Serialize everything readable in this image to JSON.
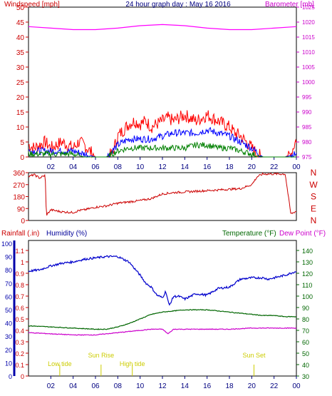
{
  "chart_data": [
    {
      "panel": "wind",
      "type": "line",
      "title": "24 hour graph day : May 16 2016",
      "left_label": "Windspeed [mph]",
      "right_label": "Barometer [mb]",
      "left_ticks": [
        0,
        5,
        10,
        15,
        20,
        25,
        30,
        35,
        40,
        45,
        50
      ],
      "right_ticks": [
        975,
        980,
        985,
        990,
        995,
        1000,
        1005,
        1010,
        1015,
        1020,
        1025
      ],
      "x_ticks": [
        "02",
        "04",
        "06",
        "08",
        "10",
        "12",
        "14",
        "16",
        "18",
        "20",
        "22",
        "00"
      ],
      "ylim": [
        0,
        50
      ],
      "y2lim": [
        975,
        1025
      ],
      "xlim": [
        0,
        24
      ],
      "series": [
        {
          "color": "#ff0000",
          "x": [
            0,
            0.5,
            1,
            1.5,
            2,
            2.5,
            3,
            3.5,
            4,
            4.5,
            5,
            5.5,
            6,
            6.5,
            7,
            7.5,
            8,
            8.5,
            9,
            9.5,
            10,
            10.5,
            11,
            11.5,
            12,
            12.5,
            13,
            13.5,
            14,
            14.5,
            15,
            15.5,
            16,
            16.5,
            17,
            17.5,
            18,
            18.5,
            19,
            19.5,
            20,
            20.5,
            21,
            21.5,
            22,
            22.5,
            23,
            23.5,
            24
          ],
          "values": [
            4,
            3,
            4,
            5,
            3,
            4,
            5,
            4,
            3,
            5,
            4,
            2,
            0,
            0,
            0,
            1,
            7,
            9,
            11,
            12,
            11,
            12,
            10,
            11,
            12,
            13,
            12,
            13,
            14,
            13,
            12,
            13,
            14,
            13,
            12,
            11,
            10,
            8,
            7,
            5,
            3,
            1,
            0,
            0,
            0,
            0,
            0,
            1,
            6
          ]
        },
        {
          "color": "#0000ff",
          "x": [
            0,
            1,
            2,
            3,
            4,
            5,
            6,
            7,
            8,
            9,
            10,
            11,
            12,
            13,
            14,
            15,
            16,
            17,
            18,
            19,
            20,
            21,
            22,
            23,
            24
          ],
          "values": [
            2,
            2,
            2,
            2,
            2,
            1,
            0,
            0,
            4,
            6,
            6,
            6,
            7,
            8,
            8,
            8,
            9,
            8,
            7,
            5,
            3,
            0,
            0,
            0,
            1
          ]
        },
        {
          "color": "#008000",
          "x": [
            0,
            1,
            2,
            3,
            4,
            5,
            6,
            7,
            8,
            9,
            10,
            11,
            12,
            13,
            14,
            15,
            16,
            17,
            18,
            19,
            20,
            21,
            22,
            23,
            24
          ],
          "values": [
            1,
            1,
            1,
            1,
            1,
            0,
            0,
            0,
            2,
            3,
            3,
            3,
            3,
            3,
            3,
            4,
            4,
            3,
            3,
            2,
            1,
            0,
            0,
            0,
            0
          ]
        },
        {
          "color": "#ff00ff",
          "axis": "right",
          "x": [
            0,
            2,
            4,
            6,
            8,
            10,
            12,
            14,
            16,
            18,
            20,
            22,
            24
          ],
          "values": [
            1018.5,
            1018,
            1017.5,
            1017.5,
            1018,
            1018.8,
            1019.2,
            1018.8,
            1018,
            1017.5,
            1017.5,
            1018,
            1018.5
          ]
        }
      ]
    },
    {
      "panel": "direction",
      "type": "line",
      "left_ticks": [
        0,
        90,
        180,
        270,
        360
      ],
      "right_labels": [
        "N",
        "W",
        "S",
        "E",
        "N"
      ],
      "ylim": [
        0,
        360
      ],
      "xlim": [
        0,
        24
      ],
      "series": [
        {
          "color": "#cc0000",
          "x": [
            0,
            0.5,
            1,
            1.5,
            1.6,
            2,
            3,
            4,
            4.5,
            5,
            6,
            7,
            8,
            9,
            10,
            11,
            12,
            13,
            14,
            15,
            16,
            17,
            18,
            19,
            20,
            20.5,
            21,
            22,
            22.2,
            23,
            23.5,
            24
          ],
          "values": [
            330,
            345,
            320,
            340,
            40,
            80,
            65,
            60,
            75,
            80,
            100,
            110,
            130,
            140,
            150,
            165,
            200,
            210,
            215,
            220,
            225,
            230,
            235,
            240,
            270,
            330,
            350,
            350,
            350,
            350,
            50,
            70
          ]
        }
      ]
    },
    {
      "panel": "temperature",
      "type": "line",
      "left_label": "Rainfall (.in)",
      "humidity_label": "Humidity (%)",
      "temp_label": "Temperature (°F)",
      "dew_label": "Dew Point (°F)",
      "rain_ticks": [
        0,
        0.1,
        0.2,
        0.3,
        0.4,
        0.5,
        0.6,
        0.7,
        0.8,
        0.9,
        1,
        1.1
      ],
      "humidity_ticks": [
        0,
        10,
        20,
        30,
        40,
        50,
        60,
        70,
        80,
        90,
        100
      ],
      "temp_ticks": [
        30,
        40,
        50,
        60,
        70,
        80,
        90,
        100,
        110,
        120,
        130,
        140
      ],
      "x_ticks": [
        "02",
        "04",
        "06",
        "08",
        "10",
        "12",
        "14",
        "16",
        "18",
        "20",
        "22",
        "00"
      ],
      "events": [
        {
          "label": "Low tide",
          "hour": 2.8
        },
        {
          "label": "Sun Rise",
          "hour": 6.5
        },
        {
          "label": "High tide",
          "hour": 9.3
        },
        {
          "label": "Sun Set",
          "hour": 20.2
        }
      ],
      "series": [
        {
          "name": "Humidity",
          "color": "#0000cc",
          "axis": "humidity",
          "x": [
            0,
            1,
            2,
            3,
            4,
            5,
            6,
            7,
            8,
            9,
            10,
            10.5,
            11,
            11.5,
            12,
            12.3,
            12.6,
            13,
            13.5,
            14,
            15,
            16,
            17,
            18,
            19,
            20,
            21,
            21.5,
            22,
            23,
            24
          ],
          "values": [
            79,
            80,
            83,
            85,
            86,
            88,
            89,
            90,
            90,
            86,
            76,
            70,
            67,
            61,
            59,
            64,
            53,
            60,
            60,
            58,
            62,
            61,
            66,
            67,
            73,
            74,
            74,
            73,
            74,
            76,
            79
          ]
        },
        {
          "name": "Temperature",
          "color": "#006600",
          "axis": "temp",
          "x": [
            0,
            2,
            4,
            6,
            7,
            8,
            9,
            10,
            11,
            12,
            13,
            14,
            15,
            16,
            17,
            18,
            19,
            20,
            21,
            22,
            23,
            24
          ],
          "values": [
            74,
            73,
            72,
            71,
            71,
            73,
            76,
            80,
            84,
            86,
            87,
            88,
            88,
            88,
            87,
            86,
            85,
            84,
            83,
            83,
            82,
            82
          ]
        },
        {
          "name": "Dew Point",
          "color": "#cc00cc",
          "axis": "temp",
          "x": [
            0,
            2,
            4,
            6,
            8,
            10,
            11,
            12,
            12.5,
            13,
            14,
            16,
            18,
            20,
            22,
            24
          ],
          "values": [
            68,
            67,
            66,
            66,
            68,
            70,
            71,
            71,
            67,
            71,
            71,
            71,
            71,
            72,
            72,
            72
          ]
        }
      ]
    }
  ]
}
